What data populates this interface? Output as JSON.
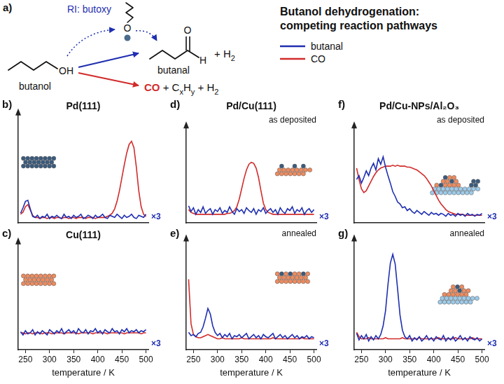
{
  "scheme": {
    "panel_label": "a)",
    "title": "Butanol dehydrogenation: competing reaction pathways",
    "reactant": "butanol",
    "reactant_group": "OH",
    "intermediate": "RI: butoxy",
    "intermediate_atom": "O",
    "product": "butanal",
    "product_atoms": [
      "O",
      "H"
    ],
    "coproduct": [
      {
        "text": "+ H"
      },
      {
        "sub": "2"
      }
    ],
    "side_products": [
      {
        "text": "CO",
        "color": "#d22b2b"
      },
      {
        "text": " + C"
      },
      {
        "sub": "x"
      },
      {
        "text": "H"
      },
      {
        "sub": "y"
      },
      {
        "text": " + H"
      },
      {
        "sub": "2"
      }
    ]
  },
  "chart_data": [
    {
      "type": "line",
      "panel_label": "b)",
      "title": "Pd(111)",
      "annotations": [
        "×3"
      ],
      "x": [
        240,
        245,
        250,
        255,
        260,
        265,
        270,
        275,
        280,
        285,
        290,
        295,
        300,
        305,
        310,
        315,
        320,
        325,
        330,
        335,
        340,
        345,
        350,
        355,
        360,
        365,
        370,
        375,
        380,
        385,
        390,
        395,
        400,
        405,
        410,
        415,
        420,
        425,
        430,
        435,
        440,
        445,
        450,
        455,
        460,
        465,
        470,
        475,
        480,
        485,
        490,
        495,
        500
      ],
      "series": [
        {
          "name": "butanal",
          "color": "#1f2fb0",
          "values": [
            0.9,
            1.4,
            2.0,
            2.1,
            1.3,
            0.6,
            0.5,
            0.7,
            0.4,
            0.6,
            0.5,
            0.8,
            0.4,
            0.6,
            0.5,
            0.7,
            0.5,
            0.4,
            0.8,
            0.5,
            0.6,
            0.4,
            0.7,
            0.5,
            0.6,
            0.8,
            0.4,
            0.5,
            0.7,
            0.6,
            0.4,
            0.7,
            0.5,
            0.6,
            0.8,
            0.5,
            0.4,
            0.7,
            0.6,
            0.5,
            0.8,
            0.6,
            0.4,
            0.7,
            0.5,
            0.6,
            0.8,
            0.5,
            0.4,
            0.7,
            0.6,
            0.5,
            0.8
          ]
        },
        {
          "name": "CO",
          "color": "#d22b2b",
          "values": [
            0.8,
            1.0,
            1.5,
            1.7,
            1.2,
            0.7,
            0.5,
            0.5,
            0.4,
            0.5,
            0.5,
            0.4,
            0.5,
            0.5,
            0.4,
            0.5,
            0.5,
            0.4,
            0.5,
            0.5,
            0.4,
            0.5,
            0.5,
            0.4,
            0.5,
            0.5,
            0.5,
            0.4,
            0.5,
            0.5,
            0.5,
            0.4,
            0.5,
            0.5,
            0.5,
            0.5,
            0.6,
            0.7,
            0.9,
            1.3,
            2.0,
            3.0,
            4.2,
            5.4,
            6.5,
            7.3,
            7.6,
            7.0,
            5.2,
            3.0,
            1.5,
            0.8,
            0.6
          ]
        }
      ],
      "xlim": [
        235,
        505
      ],
      "xticks": [
        250,
        300,
        350,
        400,
        450,
        500
      ],
      "ylim": [
        0,
        10
      ],
      "tick_labels": false
    },
    {
      "type": "line",
      "panel_label": "c)",
      "title": "Cu(111)",
      "annotations": [
        "×3"
      ],
      "xlabel": "temperature / K",
      "x": [
        240,
        245,
        250,
        255,
        260,
        265,
        270,
        275,
        280,
        285,
        290,
        295,
        300,
        305,
        310,
        315,
        320,
        325,
        330,
        335,
        340,
        345,
        350,
        355,
        360,
        365,
        370,
        375,
        380,
        385,
        390,
        395,
        400,
        405,
        410,
        415,
        420,
        425,
        430,
        435,
        440,
        445,
        450,
        455,
        460,
        465,
        470,
        475,
        480,
        485,
        490,
        495,
        500
      ],
      "series": [
        {
          "name": "butanal",
          "color": "#1f2fb0",
          "values": [
            1.7,
            1.4,
            1.8,
            1.5,
            1.6,
            1.9,
            1.4,
            1.7,
            1.5,
            1.8,
            1.6,
            1.4,
            1.9,
            1.7,
            1.5,
            1.8,
            1.6,
            2.0,
            1.5,
            1.7,
            1.9,
            1.6,
            1.8,
            1.5,
            2.0,
            1.7,
            1.6,
            1.9,
            1.5,
            1.8,
            1.7,
            2.0,
            1.6,
            1.8,
            1.5,
            1.9,
            1.7,
            1.6,
            2.0,
            1.7,
            1.8,
            1.5,
            1.9,
            1.7,
            2.0,
            1.6,
            1.8,
            1.7,
            1.9,
            1.6,
            1.8,
            1.7,
            1.9
          ]
        },
        {
          "name": "CO",
          "color": "#d22b2b",
          "values": [
            1.6,
            1.6,
            1.5,
            1.6,
            1.6,
            1.5,
            1.6,
            1.6,
            1.6,
            1.5,
            1.6,
            1.6,
            1.6,
            1.5,
            1.6,
            1.6,
            1.6,
            1.6,
            1.5,
            1.6,
            1.6,
            1.6,
            1.6,
            1.6,
            1.5,
            1.6,
            1.6,
            1.6,
            1.6,
            1.6,
            1.5,
            1.6,
            1.6,
            1.6,
            1.6,
            1.6,
            1.5,
            1.6,
            1.6,
            1.6,
            1.6,
            1.6,
            1.6,
            1.5,
            1.6,
            1.6,
            1.6,
            1.6,
            1.6,
            1.6,
            1.5,
            1.6,
            1.6
          ]
        }
      ],
      "xlim": [
        235,
        505
      ],
      "xticks": [
        250,
        300,
        350,
        400,
        450,
        500
      ],
      "ylim": [
        0,
        10
      ],
      "tick_labels": "x"
    },
    {
      "type": "line",
      "panel_label": "d)",
      "title": "Pd/Cu(111)",
      "subtitle": "as deposited",
      "annotations": [
        "×3"
      ],
      "x": [
        240,
        245,
        250,
        255,
        260,
        265,
        270,
        275,
        280,
        285,
        290,
        295,
        300,
        305,
        310,
        315,
        320,
        325,
        330,
        335,
        340,
        345,
        350,
        355,
        360,
        365,
        370,
        375,
        380,
        385,
        390,
        395,
        400,
        405,
        410,
        415,
        420,
        425,
        430,
        435,
        440,
        445,
        450,
        455,
        460,
        465,
        470,
        475,
        480,
        485,
        490,
        495,
        500
      ],
      "series": [
        {
          "name": "butanal",
          "color": "#1f2fb0",
          "values": [
            1.8,
            1.2,
            1.6,
            0.9,
            1.4,
            1.1,
            1.7,
            1.0,
            1.3,
            1.5,
            0.9,
            1.4,
            1.2,
            1.6,
            1.0,
            1.3,
            1.1,
            1.7,
            1.2,
            0.9,
            1.5,
            1.2,
            1.4,
            1.0,
            1.6,
            1.3,
            1.1,
            1.5,
            0.9,
            1.4,
            1.2,
            1.6,
            1.0,
            1.3,
            1.5,
            1.1,
            1.4,
            0.9,
            1.6,
            1.2,
            1.0,
            1.5,
            1.3,
            1.7,
            1.0,
            1.4,
            1.2,
            1.6,
            0.9,
            1.3,
            1.5,
            1.1,
            1.4
          ]
        },
        {
          "name": "CO",
          "color": "#d22b2b",
          "values": [
            1.4,
            1.1,
            1.0,
            0.9,
            0.9,
            0.9,
            0.9,
            0.9,
            0.9,
            0.9,
            0.9,
            0.9,
            0.9,
            0.9,
            0.9,
            0.9,
            1.0,
            1.0,
            1.1,
            1.3,
            1.7,
            2.5,
            3.6,
            4.7,
            5.6,
            6.2,
            6.4,
            6.3,
            5.8,
            4.8,
            3.4,
            2.1,
            1.4,
            1.1,
            1.0,
            0.9,
            0.9,
            0.9,
            0.9,
            0.9,
            0.9,
            0.9,
            0.9,
            0.9,
            0.9,
            0.9,
            0.9,
            0.9,
            0.9,
            0.9,
            0.9,
            0.9,
            0.9
          ]
        }
      ],
      "xlim": [
        235,
        505
      ],
      "xticks": [
        250,
        300,
        350,
        400,
        450,
        500
      ],
      "ylim": [
        0,
        10
      ],
      "tick_labels": false
    },
    {
      "type": "line",
      "panel_label": "e)",
      "subtitle": "annealed",
      "annotations": [
        "×3"
      ],
      "xlabel": "temperature / K",
      "x": [
        240,
        245,
        250,
        255,
        260,
        265,
        270,
        275,
        280,
        285,
        290,
        295,
        300,
        305,
        310,
        315,
        320,
        325,
        330,
        335,
        340,
        345,
        350,
        355,
        360,
        365,
        370,
        375,
        380,
        385,
        390,
        395,
        400,
        405,
        410,
        415,
        420,
        425,
        430,
        435,
        440,
        445,
        450,
        455,
        460,
        465,
        470,
        475,
        480,
        485,
        490,
        495,
        500
      ],
      "series": [
        {
          "name": "butanal",
          "color": "#1f2fb0",
          "values": [
            1.6,
            1.3,
            1.4,
            1.2,
            1.5,
            1.6,
            2.1,
            2.9,
            3.8,
            3.3,
            2.2,
            1.6,
            1.3,
            1.5,
            1.1,
            1.4,
            1.2,
            1.5,
            1.0,
            1.3,
            1.2,
            1.4,
            1.1,
            1.3,
            1.5,
            1.0,
            1.2,
            1.4,
            1.1,
            1.3,
            1.0,
            1.4,
            1.2,
            1.1,
            1.3,
            1.5,
            1.0,
            1.2,
            1.4,
            1.1,
            1.3,
            1.0,
            1.2,
            1.4,
            1.1,
            1.3,
            1.0,
            1.2,
            1.1,
            1.3,
            1.0,
            1.2,
            1.1
          ]
        },
        {
          "name": "CO",
          "color": "#d22b2b",
          "values": [
            6.5,
            2.4,
            1.4,
            1.2,
            1.1,
            1.1,
            1.2,
            1.3,
            1.4,
            1.3,
            1.2,
            1.1,
            1.0,
            1.0,
            1.1,
            1.0,
            1.0,
            1.0,
            1.0,
            1.0,
            1.0,
            1.0,
            1.1,
            1.0,
            1.0,
            1.0,
            1.0,
            1.0,
            1.0,
            1.0,
            1.0,
            1.0,
            1.0,
            1.0,
            1.0,
            1.1,
            1.0,
            1.0,
            1.0,
            1.0,
            1.0,
            1.0,
            1.0,
            1.0,
            1.0,
            1.0,
            1.0,
            1.1,
            1.0,
            1.0,
            1.0,
            1.0,
            1.0
          ]
        }
      ],
      "xlim": [
        235,
        505
      ],
      "xticks": [
        250,
        300,
        350,
        400,
        450,
        500
      ],
      "ylim": [
        0,
        10
      ],
      "tick_labels": "x"
    },
    {
      "type": "line",
      "panel_label": "f)",
      "title": "Pd/Cu-NPs/Al₂O₃",
      "subtitle": "as deposited",
      "annotations": [
        "×3"
      ],
      "x": [
        240,
        245,
        250,
        255,
        260,
        265,
        270,
        275,
        280,
        285,
        290,
        295,
        300,
        305,
        310,
        315,
        320,
        325,
        330,
        335,
        340,
        345,
        350,
        355,
        360,
        365,
        370,
        375,
        380,
        385,
        390,
        395,
        400,
        405,
        410,
        415,
        420,
        425,
        430,
        435,
        440,
        445,
        450,
        455,
        460,
        465,
        470,
        475,
        480,
        485,
        490,
        495,
        500
      ],
      "series": [
        {
          "name": "butanal",
          "color": "#1f2fb0",
          "values": [
            4.6,
            5.0,
            4.2,
            4.8,
            5.5,
            5.0,
            5.8,
            6.3,
            5.6,
            6.8,
            6.2,
            7.0,
            5.9,
            5.0,
            4.2,
            3.3,
            2.8,
            2.2,
            2.0,
            1.6,
            1.7,
            1.3,
            1.5,
            1.2,
            1.0,
            1.3,
            1.1,
            0.9,
            1.2,
            1.0,
            0.8,
            1.1,
            0.9,
            1.0,
            0.8,
            1.0,
            0.9,
            0.7,
            1.0,
            0.8,
            0.9,
            0.7,
            1.0,
            0.8,
            0.9,
            0.7,
            1.0,
            0.8,
            0.9,
            0.7,
            0.9,
            0.8,
            1.0
          ]
        },
        {
          "name": "CO",
          "color": "#d22b2b",
          "values": [
            5.8,
            4.6,
            3.6,
            3.2,
            3.4,
            3.9,
            4.4,
            4.9,
            5.3,
            5.6,
            5.8,
            5.9,
            6.0,
            6.0,
            6.0,
            6.1,
            6.0,
            6.1,
            6.0,
            6.0,
            6.0,
            5.9,
            5.9,
            5.8,
            5.7,
            5.6,
            5.4,
            5.2,
            5.0,
            4.7,
            4.3,
            3.9,
            3.4,
            2.9,
            2.4,
            2.0,
            1.7,
            1.4,
            1.2,
            1.1,
            1.0,
            0.9,
            0.9,
            0.9,
            0.9,
            0.8,
            0.8,
            0.8,
            0.8,
            0.8,
            0.8,
            0.8,
            0.8
          ]
        }
      ],
      "xlim": [
        235,
        505
      ],
      "xticks": [
        250,
        300,
        350,
        400,
        450,
        500
      ],
      "ylim": [
        0,
        10
      ],
      "tick_labels": false
    },
    {
      "type": "line",
      "panel_label": "g)",
      "subtitle": "annealed",
      "annotations": [
        "×3"
      ],
      "xlabel": "temperature / K",
      "x": [
        240,
        245,
        250,
        255,
        260,
        265,
        270,
        275,
        280,
        285,
        290,
        295,
        300,
        305,
        310,
        315,
        320,
        325,
        330,
        335,
        340,
        345,
        350,
        355,
        360,
        365,
        370,
        375,
        380,
        385,
        390,
        395,
        400,
        405,
        410,
        415,
        420,
        425,
        430,
        435,
        440,
        445,
        450,
        455,
        460,
        465,
        470,
        475,
        480,
        485,
        490,
        495,
        500
      ],
      "series": [
        {
          "name": "butanal",
          "color": "#1f2fb0",
          "values": [
            1.5,
            0.9,
            1.3,
            1.0,
            1.4,
            0.8,
            1.2,
            0.9,
            1.3,
            1.0,
            1.4,
            2.2,
            3.6,
            6.0,
            8.0,
            8.8,
            7.9,
            5.6,
            3.2,
            1.8,
            1.2,
            1.0,
            1.3,
            0.8,
            1.1,
            0.9,
            1.2,
            0.8,
            1.0,
            1.3,
            0.9,
            1.1,
            0.8,
            1.2,
            1.0,
            0.9,
            1.3,
            0.8,
            1.1,
            0.9,
            1.2,
            0.8,
            1.0,
            1.3,
            0.9,
            1.1,
            0.8,
            1.2,
            1.0,
            0.9,
            1.1,
            0.8,
            1.0
          ]
        },
        {
          "name": "CO",
          "color": "#d22b2b",
          "values": [
            1.6,
            1.2,
            1.0,
            1.0,
            1.0,
            1.1,
            1.0,
            1.0,
            1.0,
            1.0,
            1.0,
            1.0,
            1.1,
            1.0,
            1.0,
            1.0,
            1.0,
            1.0,
            1.0,
            1.1,
            1.0,
            1.0,
            1.0,
            1.0,
            1.0,
            1.0,
            1.1,
            1.0,
            1.0,
            1.0,
            1.0,
            1.0,
            1.0,
            1.0,
            1.1,
            1.0,
            1.0,
            1.0,
            1.0,
            1.0,
            1.0,
            1.1,
            1.0,
            1.0,
            1.0,
            1.0,
            1.0,
            1.0,
            1.1,
            1.0,
            1.0,
            1.0,
            1.0
          ]
        }
      ],
      "xlim": [
        235,
        505
      ],
      "xticks": [
        250,
        300,
        350,
        400,
        450,
        500
      ],
      "ylim": [
        0,
        10
      ],
      "tick_labels": "x"
    }
  ]
}
